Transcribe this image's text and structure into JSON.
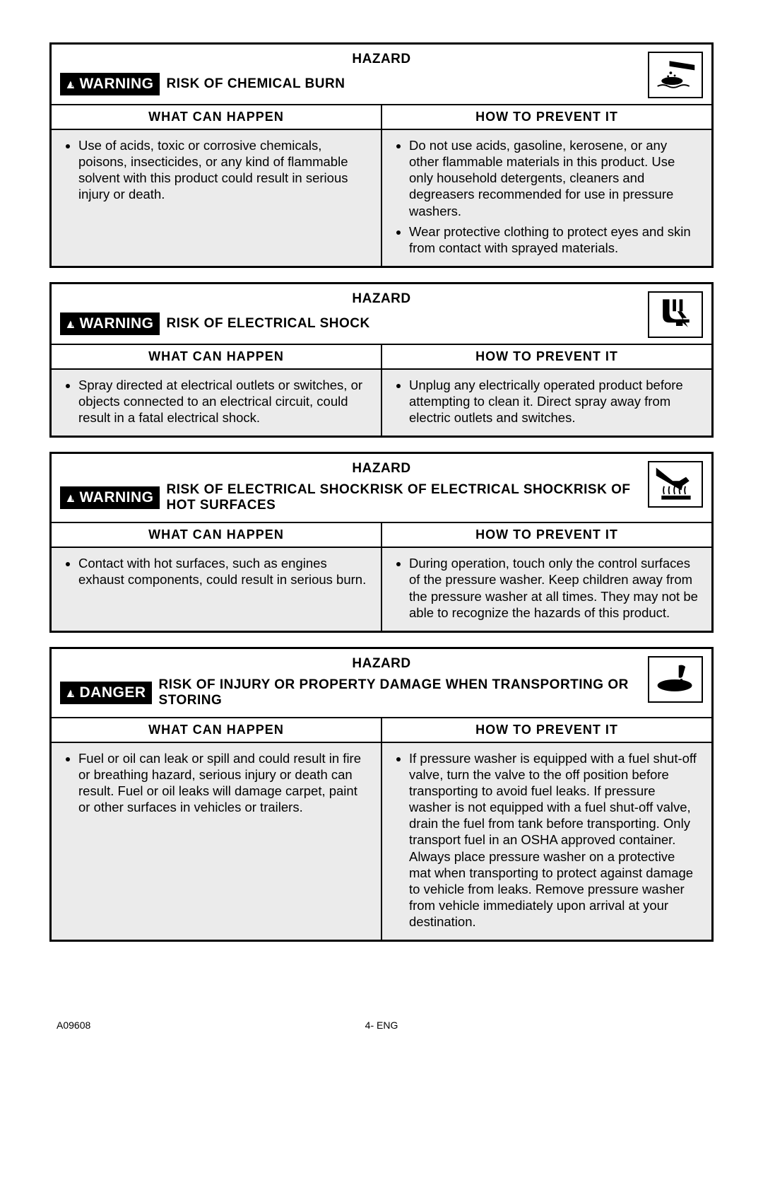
{
  "labels": {
    "hazard": "HAZARD",
    "what_can_happen": "WHAT CAN HAPPEN",
    "how_to_prevent": "HOW TO PREVENT IT",
    "warning": "WARNING",
    "danger": "DANGER"
  },
  "colors": {
    "background": "#ffffff",
    "text": "#000000",
    "body_bg": "#ebebeb",
    "badge_bg": "#000000",
    "badge_fg": "#ffffff"
  },
  "typography": {
    "font_family": "Arial, Helvetica, sans-serif",
    "heading_fontsize": 19,
    "body_fontsize": 18.5,
    "badge_fontsize": 21,
    "footer_fontsize": 14
  },
  "sections": [
    {
      "signal": "WARNING",
      "risk_title": "RISK OF CHEMICAL BURN",
      "icon": "chemical-burn-icon",
      "what": [
        "Use of acids, toxic or corrosive chemicals, poisons, insecticides, or any kind of flammable solvent with this product could result in serious injury or death."
      ],
      "prevent": [
        "Do not use acids, gasoline, kerosene, or any other flammable materials in this product. Use only household detergents, cleaners and degreasers recommended for use in pressure washers.",
        "Wear protective clothing to protect eyes and skin from contact with sprayed materials."
      ]
    },
    {
      "signal": "WARNING",
      "risk_title": "RISK OF ELECTRICAL SHOCK",
      "icon": "electric-shock-icon",
      "what": [
        "Spray directed at electrical outlets or switches, or objects connected to an electrical circuit, could result in a fatal electrical shock."
      ],
      "prevent": [
        "Unplug any electrically operated product before attempting to clean it. Direct spray away from electric outlets and switches."
      ]
    },
    {
      "signal": "WARNING",
      "risk_title": "RISK OF ELECTRICAL SHOCKRISK OF ELECTRICAL SHOCKRISK OF HOT SURFACES",
      "icon": "hot-surface-icon",
      "what": [
        "Contact with hot surfaces, such as engines exhaust components, could result in serious burn."
      ],
      "prevent": [
        "During operation, touch only the control surfaces of the pressure washer. Keep children away from the pressure washer at all times. They may not be able to recognize the hazards of this product."
      ]
    },
    {
      "signal": "DANGER",
      "risk_title": "RISK OF INJURY OR PROPERTY DAMAGE WHEN TRANSPORTING OR STORING",
      "icon": "spill-icon",
      "what": [
        "Fuel or oil can leak or spill and could result in fire or breathing hazard, serious injury or death can result. Fuel or oil leaks will damage carpet, paint or other surfaces in vehicles or trailers."
      ],
      "prevent": [
        "If pressure washer is equipped with a fuel shut-off valve, turn the valve to the off position before transporting to avoid fuel leaks. If pressure washer is not equipped with a fuel shut-off valve, drain the fuel from tank before transporting. Only transport fuel in an OSHA approved container. Always place pressure washer on a protective mat when transporting to protect against damage to vehicle from leaks. Remove pressure washer from vehicle immediately upon arrival at your destination."
      ]
    }
  ],
  "footer": {
    "left": "A09608",
    "center": "4- ENG"
  }
}
